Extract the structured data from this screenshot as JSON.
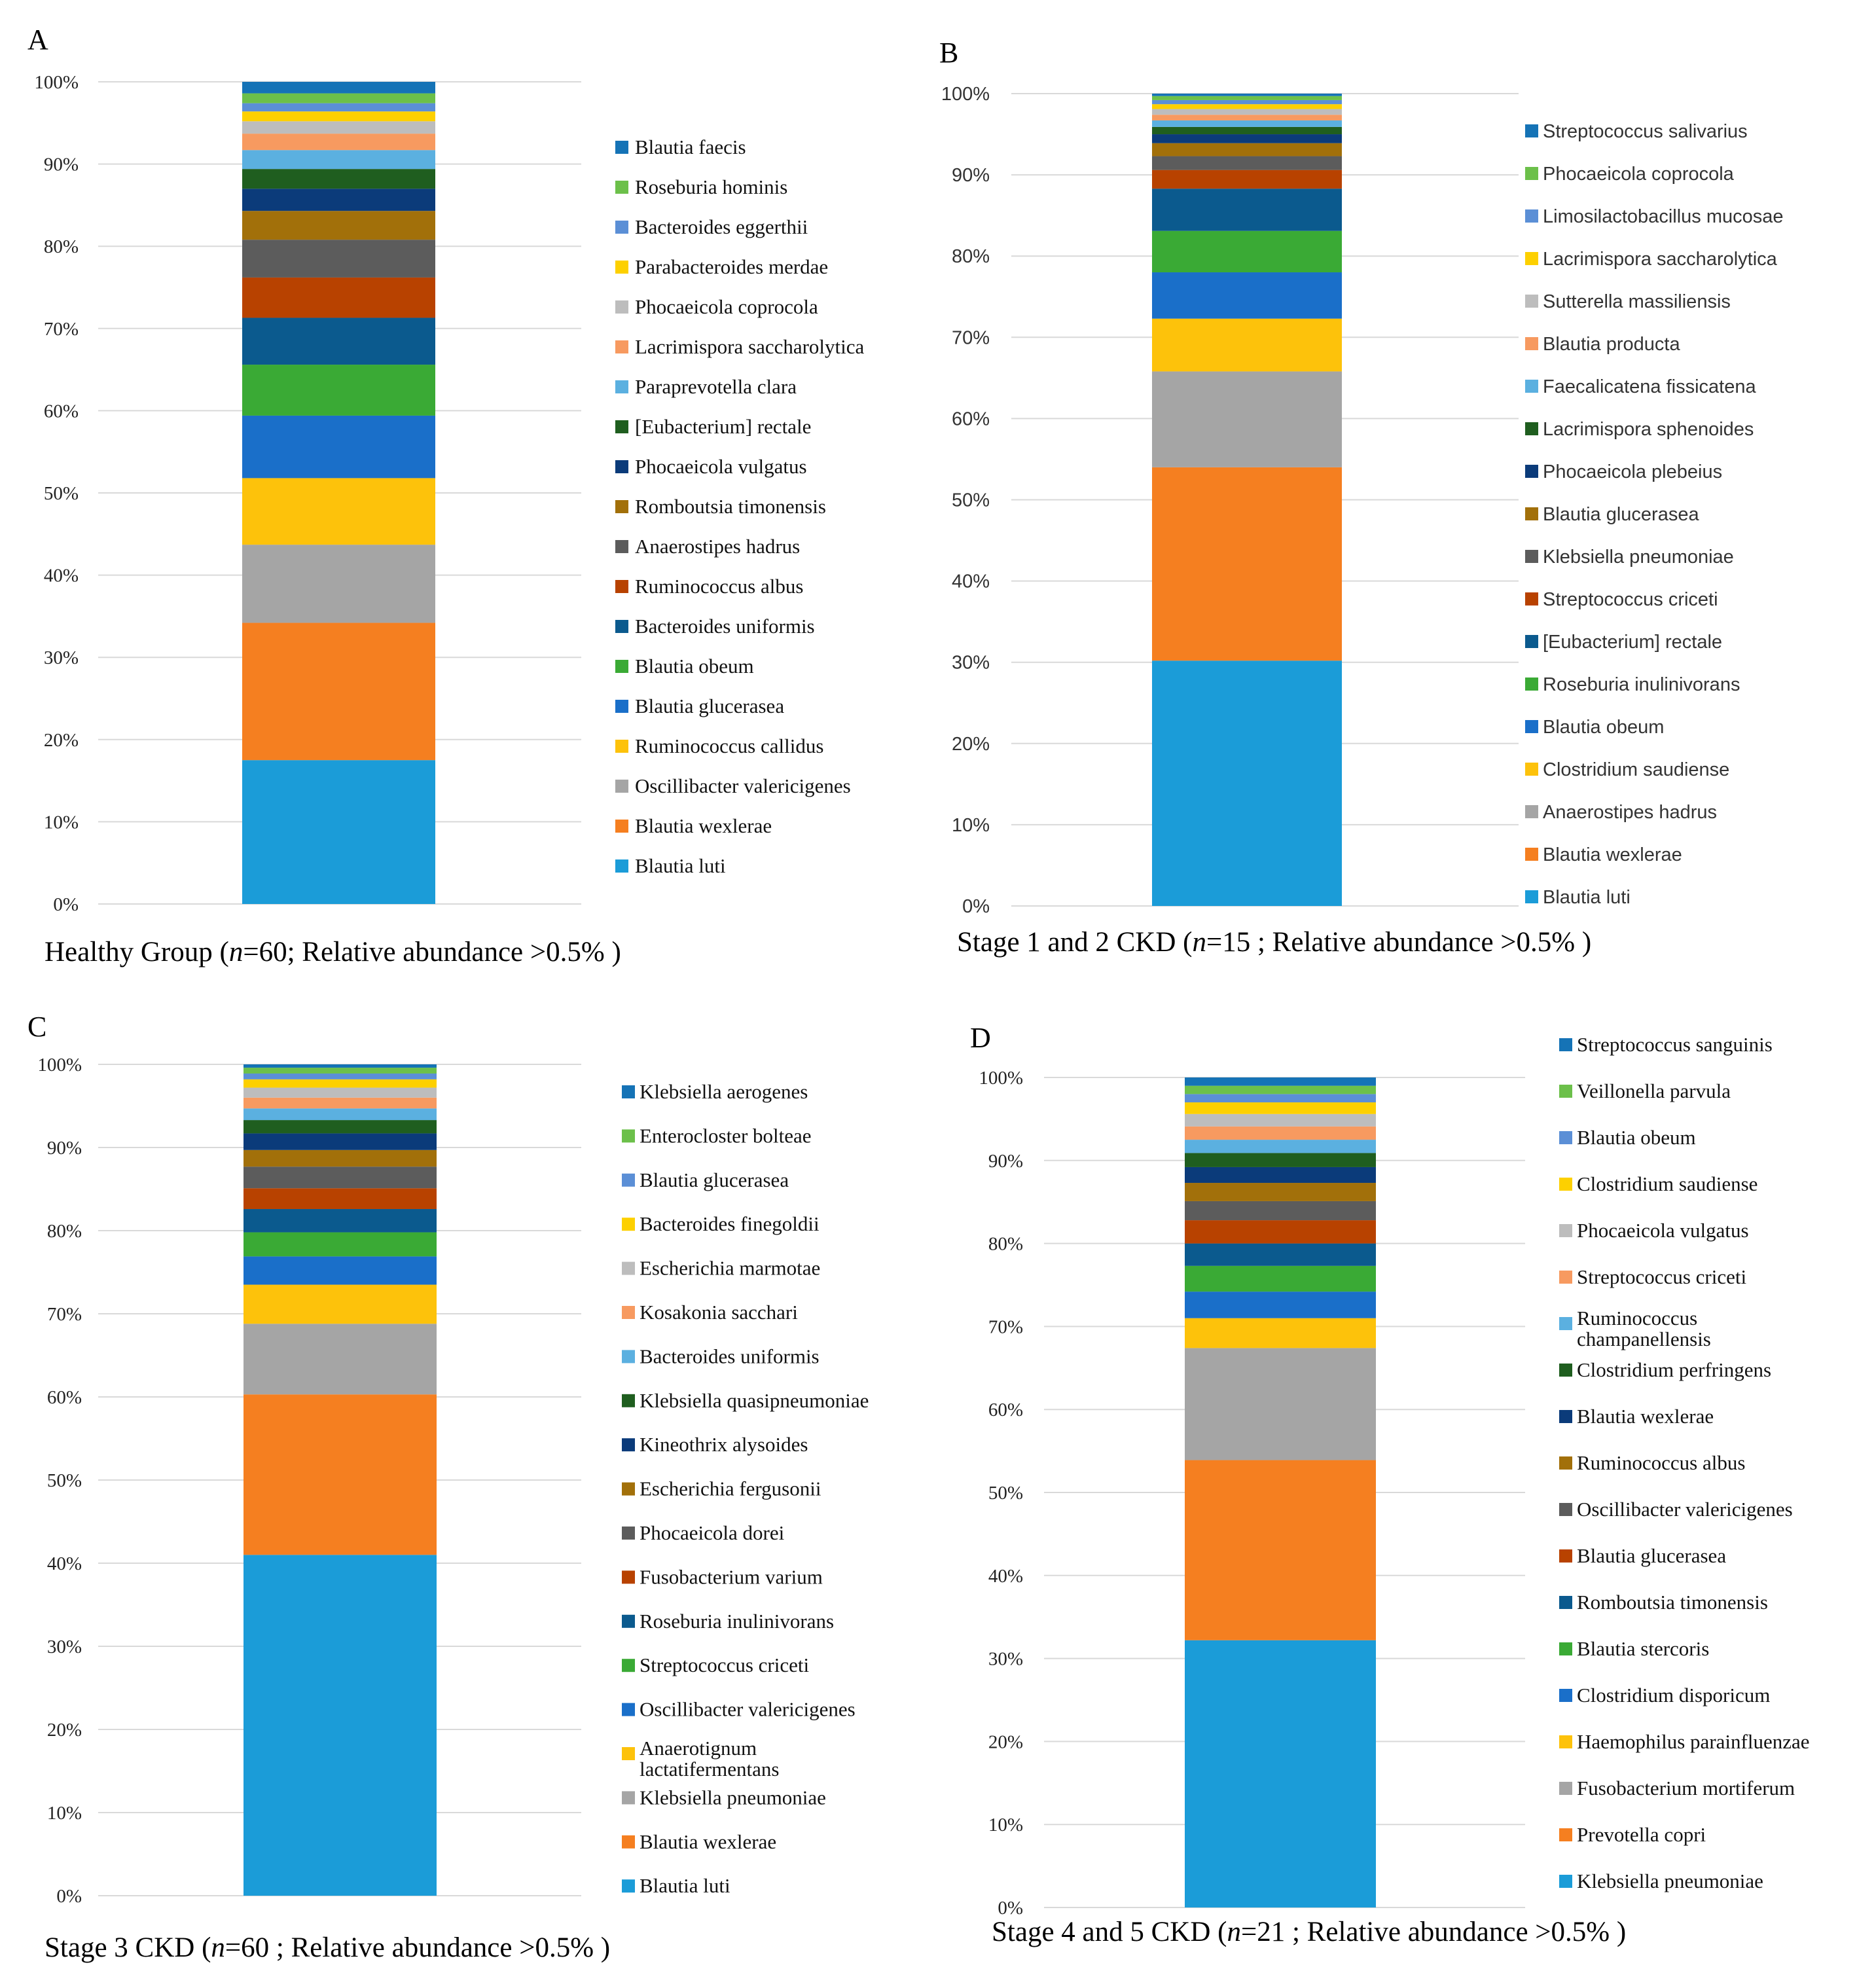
{
  "figure": {
    "colors": [
      "#1b9cd8",
      "#f57f20",
      "#a5a5a5",
      "#fdc20b",
      "#1a6fc9",
      "#3aaa35",
      "#0b5a8e",
      "#b84200",
      "#5c5c5c",
      "#a2700a",
      "#0b3b7a",
      "#1f5e1f",
      "#5bb0e0",
      "#f79a60",
      "#bdbdbd",
      "#fdd000",
      "#5b8fd6",
      "#6cc04a",
      "#1573b6"
    ]
  },
  "chart_data": [
    {
      "type": "bar",
      "stacked": true,
      "panel": "A",
      "caption": {
        "before": "Healthy Group (",
        "n": "n",
        "after": "=60; Relative abundance >0.5% )"
      },
      "yticks": [
        "0%",
        "10%",
        "20%",
        "30%",
        "40%",
        "50%",
        "60%",
        "70%",
        "80%",
        "90%",
        "100%"
      ],
      "ylim": [
        0,
        100
      ],
      "series": [
        {
          "name": "Blautia luti",
          "value": 17.5
        },
        {
          "name": "Blautia wexlerae",
          "value": 16.7
        },
        {
          "name": "Oscillibacter valericigenes",
          "value": 9.5
        },
        {
          "name": "Ruminococcus callidus",
          "value": 8.1
        },
        {
          "name": "Blautia glucerasea",
          "value": 7.6
        },
        {
          "name": "Blautia obeum",
          "value": 6.2
        },
        {
          "name": "Bacteroides uniformis",
          "value": 5.7
        },
        {
          "name": "Ruminococcus albus",
          "value": 4.9
        },
        {
          "name": "Anaerostipes hadrus",
          "value": 4.6
        },
        {
          "name": "Romboutsia timonensis",
          "value": 3.5
        },
        {
          "name": "Phocaeicola vulgatus",
          "value": 2.7
        },
        {
          "name": "[Eubacterium] rectale",
          "value": 2.4
        },
        {
          "name": "Paraprevotella clara",
          "value": 2.3
        },
        {
          "name": "Lacrimispora saccharolytica",
          "value": 2.0
        },
        {
          "name": "Phocaeicola coprocola",
          "value": 1.5
        },
        {
          "name": "Parabacteroides merdae",
          "value": 1.2
        },
        {
          "name": "Bacteroides eggerthii",
          "value": 1.0
        },
        {
          "name": "Roseburia hominis",
          "value": 1.2
        },
        {
          "name": "Blautia faecis",
          "value": 1.4
        }
      ]
    },
    {
      "type": "bar",
      "stacked": true,
      "panel": "B",
      "caption": {
        "before": "Stage 1 and 2 CKD (",
        "n": "n",
        "after": "=15 ; Relative abundance >0.5% )"
      },
      "yticks": [
        "0%",
        "10%",
        "20%",
        "30%",
        "40%",
        "50%",
        "60%",
        "70%",
        "80%",
        "90%",
        "100%"
      ],
      "ylim": [
        0,
        100
      ],
      "series": [
        {
          "name": "Blautia luti",
          "value": 30.2
        },
        {
          "name": "Blautia wexlerae",
          "value": 23.8
        },
        {
          "name": "Anaerostipes hadrus",
          "value": 11.8
        },
        {
          "name": "Clostridium saudiense",
          "value": 6.5
        },
        {
          "name": "Blautia obeum",
          "value": 5.7
        },
        {
          "name": "Roseburia inulinivorans",
          "value": 5.1
        },
        {
          "name": "[Eubacterium] rectale",
          "value": 5.2
        },
        {
          "name": "Streptococcus criceti",
          "value": 2.3
        },
        {
          "name": "Klebsiella pneumoniae",
          "value": 1.7
        },
        {
          "name": "Blautia glucerasea",
          "value": 1.6
        },
        {
          "name": "Phocaeicola plebeius",
          "value": 1.1
        },
        {
          "name": "Lacrimispora sphenoides",
          "value": 0.9
        },
        {
          "name": "Faecalicatena fissicatena",
          "value": 0.8
        },
        {
          "name": "Blautia producta",
          "value": 0.7
        },
        {
          "name": "Sutterella massiliensis",
          "value": 0.7
        },
        {
          "name": "Lacrimispora saccharolytica",
          "value": 0.6
        },
        {
          "name": "Limosilactobacillus mucosae",
          "value": 0.5
        },
        {
          "name": "Phocaeicola coprocola",
          "value": 0.5
        },
        {
          "name": "Streptococcus salivarius",
          "value": 0.3
        }
      ]
    },
    {
      "type": "bar",
      "stacked": true,
      "panel": "C",
      "caption": {
        "before": "Stage 3 CKD (",
        "n": "n",
        "after": "=60 ; Relative abundance >0.5% )"
      },
      "yticks": [
        "0%",
        "10%",
        "20%",
        "30%",
        "40%",
        "50%",
        "60%",
        "70%",
        "80%",
        "90%",
        "100%"
      ],
      "ylim": [
        0,
        100
      ],
      "series": [
        {
          "name": "Blautia luti",
          "value": 41.0
        },
        {
          "name": "Blautia wexlerae",
          "value": 19.3
        },
        {
          "name": "Klebsiella pneumoniae",
          "value": 8.5
        },
        {
          "name": "Anaerotignum lactatifermentans",
          "value": 4.7
        },
        {
          "name": "Oscillibacter valericigenes",
          "value": 3.4
        },
        {
          "name": "Streptococcus criceti",
          "value": 2.9
        },
        {
          "name": "Roseburia inulinivorans",
          "value": 2.8
        },
        {
          "name": "Fusobacterium varium",
          "value": 2.5
        },
        {
          "name": "Phocaeicola dorei",
          "value": 2.6
        },
        {
          "name": "Escherichia fergusonii",
          "value": 2.0
        },
        {
          "name": "Kineothrix alysoides",
          "value": 2.0
        },
        {
          "name": "Klebsiella quasipneumoniae",
          "value": 1.6
        },
        {
          "name": "Bacteroides uniformis",
          "value": 1.4
        },
        {
          "name": "Kosakonia sacchari",
          "value": 1.3
        },
        {
          "name": "Escherichia marmotae",
          "value": 1.2
        },
        {
          "name": "Bacteroides finegoldii",
          "value": 1.0
        },
        {
          "name": "Blautia glucerasea",
          "value": 0.7
        },
        {
          "name": "Enterocloster bolteae",
          "value": 0.7
        },
        {
          "name": "Klebsiella aerogenes",
          "value": 0.4
        }
      ]
    },
    {
      "type": "bar",
      "stacked": true,
      "panel": "D",
      "caption": {
        "before": "Stage 4 and 5 CKD (",
        "n": "n",
        "after": "=21 ; Relative abundance >0.5% )"
      },
      "yticks": [
        "0%",
        "10%",
        "20%",
        "30%",
        "40%",
        "50%",
        "60%",
        "70%",
        "80%",
        "90%",
        "100%"
      ],
      "ylim": [
        0,
        100
      ],
      "series": [
        {
          "name": "Klebsiella pneumoniae",
          "value": 32.2
        },
        {
          "name": "Prevotella copri",
          "value": 21.7
        },
        {
          "name": "Fusobacterium mortiferum",
          "value": 13.5
        },
        {
          "name": "Haemophilus parainfluenzae",
          "value": 3.6
        },
        {
          "name": "Clostridium disporicum",
          "value": 3.2
        },
        {
          "name": "Blautia stercoris",
          "value": 3.1
        },
        {
          "name": "Romboutsia timonensis",
          "value": 2.7
        },
        {
          "name": "Blautia glucerasea",
          "value": 2.8
        },
        {
          "name": "Oscillibacter valericigenes",
          "value": 2.3
        },
        {
          "name": "Ruminococcus albus",
          "value": 2.2
        },
        {
          "name": "Blautia wexlerae",
          "value": 1.9
        },
        {
          "name": "Clostridium perfringens",
          "value": 1.7
        },
        {
          "name": "Ruminococcus champanellensis",
          "value": 1.6
        },
        {
          "name": "Streptococcus criceti",
          "value": 1.6
        },
        {
          "name": "Phocaeicola vulgatus",
          "value": 1.5
        },
        {
          "name": "Clostridium saudiense",
          "value": 1.4
        },
        {
          "name": "Blautia obeum",
          "value": 1.0
        },
        {
          "name": "Veillonella parvula",
          "value": 1.0
        },
        {
          "name": "Streptococcus sanguinis",
          "value": 1.0
        }
      ]
    }
  ]
}
